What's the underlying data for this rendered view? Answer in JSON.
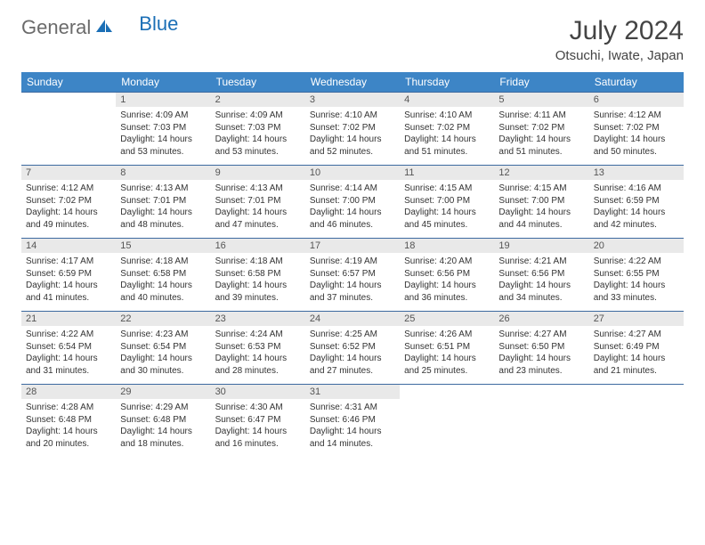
{
  "logo": {
    "general": "General",
    "blue": "Blue"
  },
  "title": {
    "month_year": "July 2024",
    "location": "Otsuchi, Iwate, Japan"
  },
  "colors": {
    "header_bg": "#3d85c6",
    "header_text": "#ffffff",
    "row_border": "#3d6aa0",
    "daynum_bg": "#e9e9e9",
    "body_text": "#333333",
    "logo_gray": "#6b6b6b",
    "logo_blue": "#1b6fb6"
  },
  "weekdays": [
    "Sunday",
    "Monday",
    "Tuesday",
    "Wednesday",
    "Thursday",
    "Friday",
    "Saturday"
  ],
  "weeks": [
    [
      {
        "day": "",
        "sunrise": "",
        "sunset": "",
        "daylight": ""
      },
      {
        "day": "1",
        "sunrise": "Sunrise: 4:09 AM",
        "sunset": "Sunset: 7:03 PM",
        "daylight": "Daylight: 14 hours and 53 minutes."
      },
      {
        "day": "2",
        "sunrise": "Sunrise: 4:09 AM",
        "sunset": "Sunset: 7:03 PM",
        "daylight": "Daylight: 14 hours and 53 minutes."
      },
      {
        "day": "3",
        "sunrise": "Sunrise: 4:10 AM",
        "sunset": "Sunset: 7:02 PM",
        "daylight": "Daylight: 14 hours and 52 minutes."
      },
      {
        "day": "4",
        "sunrise": "Sunrise: 4:10 AM",
        "sunset": "Sunset: 7:02 PM",
        "daylight": "Daylight: 14 hours and 51 minutes."
      },
      {
        "day": "5",
        "sunrise": "Sunrise: 4:11 AM",
        "sunset": "Sunset: 7:02 PM",
        "daylight": "Daylight: 14 hours and 51 minutes."
      },
      {
        "day": "6",
        "sunrise": "Sunrise: 4:12 AM",
        "sunset": "Sunset: 7:02 PM",
        "daylight": "Daylight: 14 hours and 50 minutes."
      }
    ],
    [
      {
        "day": "7",
        "sunrise": "Sunrise: 4:12 AM",
        "sunset": "Sunset: 7:02 PM",
        "daylight": "Daylight: 14 hours and 49 minutes."
      },
      {
        "day": "8",
        "sunrise": "Sunrise: 4:13 AM",
        "sunset": "Sunset: 7:01 PM",
        "daylight": "Daylight: 14 hours and 48 minutes."
      },
      {
        "day": "9",
        "sunrise": "Sunrise: 4:13 AM",
        "sunset": "Sunset: 7:01 PM",
        "daylight": "Daylight: 14 hours and 47 minutes."
      },
      {
        "day": "10",
        "sunrise": "Sunrise: 4:14 AM",
        "sunset": "Sunset: 7:00 PM",
        "daylight": "Daylight: 14 hours and 46 minutes."
      },
      {
        "day": "11",
        "sunrise": "Sunrise: 4:15 AM",
        "sunset": "Sunset: 7:00 PM",
        "daylight": "Daylight: 14 hours and 45 minutes."
      },
      {
        "day": "12",
        "sunrise": "Sunrise: 4:15 AM",
        "sunset": "Sunset: 7:00 PM",
        "daylight": "Daylight: 14 hours and 44 minutes."
      },
      {
        "day": "13",
        "sunrise": "Sunrise: 4:16 AM",
        "sunset": "Sunset: 6:59 PM",
        "daylight": "Daylight: 14 hours and 42 minutes."
      }
    ],
    [
      {
        "day": "14",
        "sunrise": "Sunrise: 4:17 AM",
        "sunset": "Sunset: 6:59 PM",
        "daylight": "Daylight: 14 hours and 41 minutes."
      },
      {
        "day": "15",
        "sunrise": "Sunrise: 4:18 AM",
        "sunset": "Sunset: 6:58 PM",
        "daylight": "Daylight: 14 hours and 40 minutes."
      },
      {
        "day": "16",
        "sunrise": "Sunrise: 4:18 AM",
        "sunset": "Sunset: 6:58 PM",
        "daylight": "Daylight: 14 hours and 39 minutes."
      },
      {
        "day": "17",
        "sunrise": "Sunrise: 4:19 AM",
        "sunset": "Sunset: 6:57 PM",
        "daylight": "Daylight: 14 hours and 37 minutes."
      },
      {
        "day": "18",
        "sunrise": "Sunrise: 4:20 AM",
        "sunset": "Sunset: 6:56 PM",
        "daylight": "Daylight: 14 hours and 36 minutes."
      },
      {
        "day": "19",
        "sunrise": "Sunrise: 4:21 AM",
        "sunset": "Sunset: 6:56 PM",
        "daylight": "Daylight: 14 hours and 34 minutes."
      },
      {
        "day": "20",
        "sunrise": "Sunrise: 4:22 AM",
        "sunset": "Sunset: 6:55 PM",
        "daylight": "Daylight: 14 hours and 33 minutes."
      }
    ],
    [
      {
        "day": "21",
        "sunrise": "Sunrise: 4:22 AM",
        "sunset": "Sunset: 6:54 PM",
        "daylight": "Daylight: 14 hours and 31 minutes."
      },
      {
        "day": "22",
        "sunrise": "Sunrise: 4:23 AM",
        "sunset": "Sunset: 6:54 PM",
        "daylight": "Daylight: 14 hours and 30 minutes."
      },
      {
        "day": "23",
        "sunrise": "Sunrise: 4:24 AM",
        "sunset": "Sunset: 6:53 PM",
        "daylight": "Daylight: 14 hours and 28 minutes."
      },
      {
        "day": "24",
        "sunrise": "Sunrise: 4:25 AM",
        "sunset": "Sunset: 6:52 PM",
        "daylight": "Daylight: 14 hours and 27 minutes."
      },
      {
        "day": "25",
        "sunrise": "Sunrise: 4:26 AM",
        "sunset": "Sunset: 6:51 PM",
        "daylight": "Daylight: 14 hours and 25 minutes."
      },
      {
        "day": "26",
        "sunrise": "Sunrise: 4:27 AM",
        "sunset": "Sunset: 6:50 PM",
        "daylight": "Daylight: 14 hours and 23 minutes."
      },
      {
        "day": "27",
        "sunrise": "Sunrise: 4:27 AM",
        "sunset": "Sunset: 6:49 PM",
        "daylight": "Daylight: 14 hours and 21 minutes."
      }
    ],
    [
      {
        "day": "28",
        "sunrise": "Sunrise: 4:28 AM",
        "sunset": "Sunset: 6:48 PM",
        "daylight": "Daylight: 14 hours and 20 minutes."
      },
      {
        "day": "29",
        "sunrise": "Sunrise: 4:29 AM",
        "sunset": "Sunset: 6:48 PM",
        "daylight": "Daylight: 14 hours and 18 minutes."
      },
      {
        "day": "30",
        "sunrise": "Sunrise: 4:30 AM",
        "sunset": "Sunset: 6:47 PM",
        "daylight": "Daylight: 14 hours and 16 minutes."
      },
      {
        "day": "31",
        "sunrise": "Sunrise: 4:31 AM",
        "sunset": "Sunset: 6:46 PM",
        "daylight": "Daylight: 14 hours and 14 minutes."
      },
      {
        "day": "",
        "sunrise": "",
        "sunset": "",
        "daylight": ""
      },
      {
        "day": "",
        "sunrise": "",
        "sunset": "",
        "daylight": ""
      },
      {
        "day": "",
        "sunrise": "",
        "sunset": "",
        "daylight": ""
      }
    ]
  ]
}
